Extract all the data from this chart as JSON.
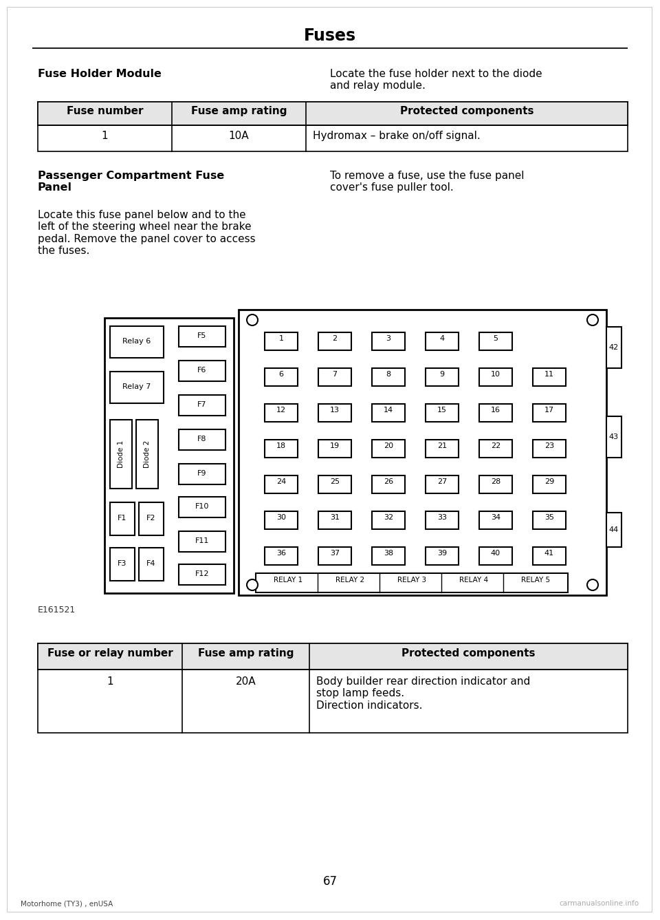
{
  "page_title": "Fuses",
  "bg_color": "#ffffff",
  "section1_heading": "Fuse Holder Module",
  "section1_right_text": "Locate the fuse holder next to the diode\nand relay module.",
  "table1_headers": [
    "Fuse number",
    "Fuse amp rating",
    "Protected components"
  ],
  "table1_rows": [
    [
      "1",
      "10A",
      "Hydromax – brake on/off signal."
    ]
  ],
  "section2_heading": "Passenger Compartment Fuse\nPanel",
  "section2_right_text": "To remove a fuse, use the fuse panel\ncover's fuse puller tool.",
  "section2_body": "Locate this fuse panel below and to the\nleft of the steering wheel near the brake\npedal. Remove the panel cover to access\nthe fuses.",
  "diagram_caption": "E161521",
  "table2_headers": [
    "Fuse or relay number",
    "Fuse amp rating",
    "Protected components"
  ],
  "table2_rows": [
    [
      "1",
      "20A",
      "Body builder rear direction indicator and\nstop lamp feeds.\nDirection indicators."
    ]
  ],
  "page_number": "67",
  "footer_left": "Motorhome (TY3) , enUSA",
  "footer_right": "carmanualsonline.info"
}
